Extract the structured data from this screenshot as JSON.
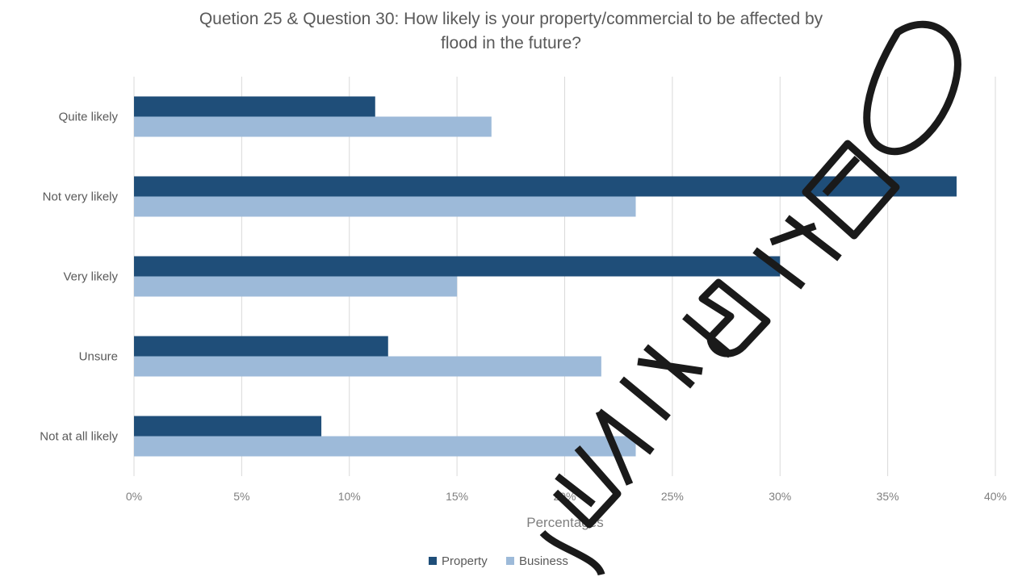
{
  "chart_data": {
    "type": "bar",
    "orientation": "horizontal",
    "title": "Quetion 25 & Question 30: How likely is your property/commercial to be affected by flood in the future?",
    "title_lines": [
      "Quetion 25 & Question 30: How likely is your property/commercial to be affected by",
      "flood in the future?"
    ],
    "categories": [
      "Quite likely",
      "Not very likely",
      "Very likely",
      "Unsure",
      "Not at all likely"
    ],
    "series": [
      {
        "name": "Property",
        "color": "#1f4e79",
        "values": [
          11.2,
          38.2,
          30.0,
          11.8,
          8.7
        ]
      },
      {
        "name": "Business",
        "color": "#9dbad9",
        "values": [
          16.6,
          23.3,
          15.0,
          21.7,
          23.3
        ]
      }
    ],
    "xlabel": "Percentages",
    "xlim": [
      0,
      40
    ],
    "xticks": [
      0,
      5,
      10,
      15,
      20,
      25,
      30,
      35,
      40
    ],
    "xtick_labels": [
      "0%",
      "5%",
      "10%",
      "15%",
      "20%",
      "25%",
      "30%",
      "35%",
      "40%"
    ],
    "grid": true,
    "legend_position": "bottom"
  },
  "watermark": {
    "text": "EXHIBITION",
    "color": "#1a1a1a"
  }
}
